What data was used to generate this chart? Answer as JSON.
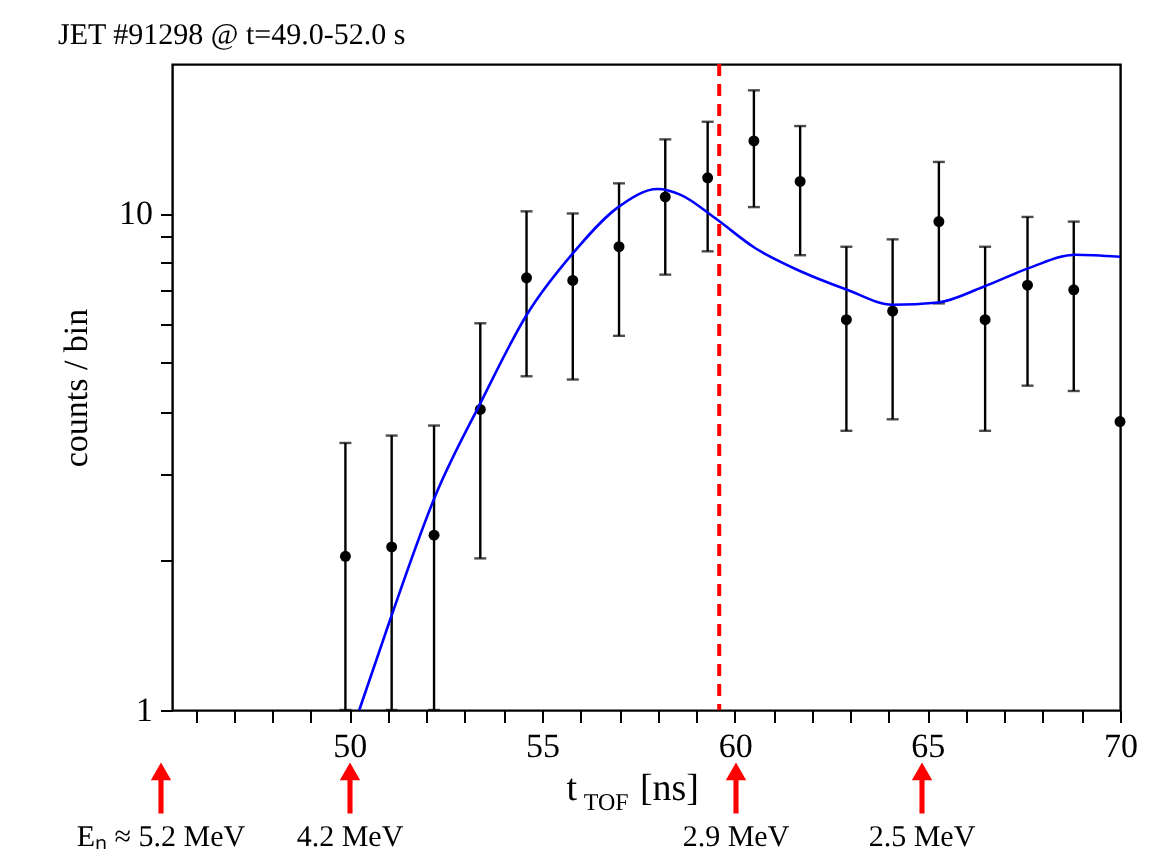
{
  "chart_data": {
    "type": "scatter",
    "title": "JET #91298 @ t=49.0-52.0 s",
    "xlabel": "t$_{TOF}$ [ns]",
    "ylabel": "counts / bin",
    "xlim": [
      45.4,
      70
    ],
    "ylim": [
      1,
      20
    ],
    "log": "y",
    "grid": false,
    "xticks": [
      {
        "value": 46,
        "label": null
      },
      {
        "value": 47,
        "label": null
      },
      {
        "value": 48,
        "label": null
      },
      {
        "value": 49,
        "label": null
      },
      50,
      {
        "value": 51,
        "label": null
      },
      {
        "value": 52,
        "label": null
      },
      {
        "value": 53,
        "label": null
      },
      {
        "value": 54,
        "label": null
      },
      55,
      {
        "value": 56,
        "label": null
      },
      {
        "value": 57,
        "label": null
      },
      {
        "value": 58,
        "label": null
      },
      {
        "value": 59,
        "label": null
      },
      60,
      {
        "value": 61,
        "label": null
      },
      {
        "value": 62,
        "label": null
      },
      {
        "value": 63,
        "label": null
      },
      {
        "value": 64,
        "label": null
      },
      65,
      {
        "value": 66,
        "label": null
      },
      {
        "value": 67,
        "label": null
      },
      {
        "value": 68,
        "label": null
      },
      {
        "value": 69,
        "label": null
      },
      70
    ],
    "yticks": [
      1,
      {
        "value": 2,
        "label": null
      },
      {
        "value": 3,
        "label": null
      },
      {
        "value": 4,
        "label": null
      },
      {
        "value": 5,
        "label": null
      },
      {
        "value": 6,
        "label": null
      },
      {
        "value": 7,
        "label": null
      },
      {
        "value": 8,
        "label": null
      },
      {
        "value": 9,
        "label": null
      },
      10
    ],
    "series": [
      {
        "color": "#000000",
        "marker": "circle",
        "x": [
          49.9,
          51.1,
          52.2,
          53.4,
          54.6,
          55.8,
          57.0,
          58.2,
          59.3,
          60.5,
          61.7,
          62.9,
          64.1,
          65.3,
          66.5,
          67.6,
          68.8,
          70.0
        ],
        "values": [
          2.04,
          2.13,
          2.25,
          4.03,
          7.42,
          7.33,
          8.57,
          10.8,
          11.8,
          14.0,
          11.6,
          6.11,
          6.36,
          9.63,
          6.11,
          7.17,
          7.02,
          3.81
        ],
        "errors": [
          [
            1,
            3.45
          ],
          [
            1,
            3.57
          ],
          [
            1,
            3.74
          ],
          [
            2.02,
            6.01
          ],
          [
            4.7,
            10.1
          ],
          [
            4.63,
            10.0
          ],
          [
            5.67,
            11.5
          ],
          [
            7.53,
            14.1
          ],
          [
            8.39,
            15.3
          ],
          [
            10.3,
            17.7
          ],
          [
            8.24,
            15.0
          ],
          [
            3.65,
            8.57
          ],
          [
            3.85,
            8.87
          ],
          [
            6.59,
            12.7
          ],
          [
            3.65,
            8.57
          ],
          [
            4.5,
            9.84
          ],
          [
            4.39,
            9.63
          ],
          null
        ]
      },
      {
        "type": "line",
        "color": "#0000ff",
        "x": [
          50.26,
          51.06,
          52.25,
          53.43,
          54.61,
          55.8,
          56.98,
          58.0,
          58.6,
          59.49,
          60.53,
          61.71,
          62.9,
          64.1,
          65.28,
          66.46,
          67.65,
          68.83,
          70.0
        ],
        "values": [
          1.0,
          1.52,
          2.72,
          4.19,
          6.26,
          8.31,
          10.3,
          11.2,
          10.9,
          9.79,
          8.52,
          7.65,
          7.03,
          6.55,
          6.62,
          7.12,
          7.77,
          8.26,
          8.18
        ]
      }
    ],
    "ref_lines": [
      {
        "axis": "x",
        "value": 59.6,
        "color": "#ff0000",
        "line_style": "dashed"
      }
    ],
    "annotations": [
      "Eₙ ≈ 5.2 MeV",
      "4.2 MeV",
      "2.9 MeV",
      "2.5 MeV"
    ]
  }
}
